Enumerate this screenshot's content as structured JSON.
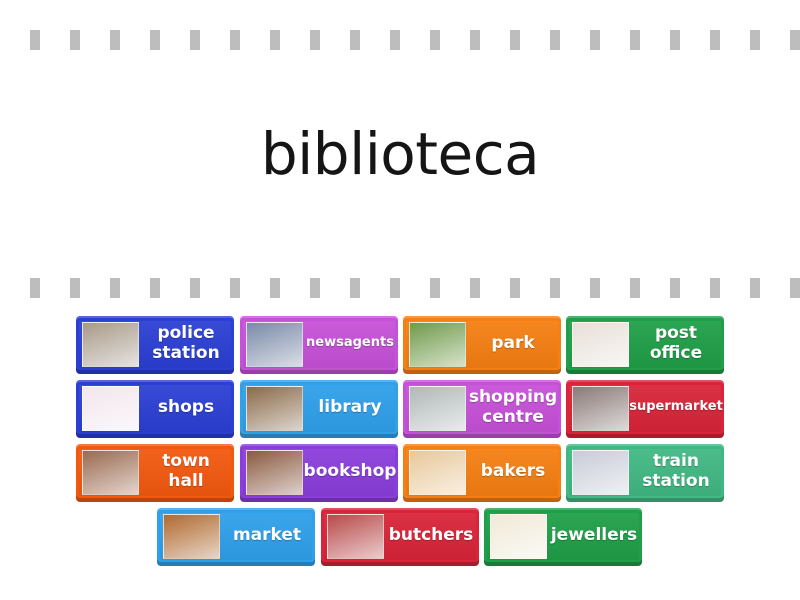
{
  "question": "biblioteca",
  "tiles": [
    {
      "label": "police station",
      "color": "#2b3fd4",
      "thumb": "#a89a8a",
      "image": "police-station"
    },
    {
      "label": "newsagents",
      "color": "#c651d9",
      "thumb": "#7a8aa8",
      "image": "newsagent-shopfront",
      "small": true
    },
    {
      "label": "park",
      "color": "#f57f12",
      "thumb": "#6f9a4a",
      "image": "park"
    },
    {
      "label": "post office",
      "color": "#1f9f48",
      "thumb": "#e8e0d8",
      "image": "post-office"
    },
    {
      "label": "shops",
      "color": "#2b3fd4",
      "thumb": "#f2e6ee",
      "image": "shopping-bags"
    },
    {
      "label": "library",
      "color": "#2fa0ea",
      "thumb": "#8a6a4a",
      "image": "library-shelves"
    },
    {
      "label": "shopping centre",
      "color": "#c651d9",
      "thumb": "#b0b8b8",
      "image": "shopping-centre"
    },
    {
      "label": "supermarket",
      "color": "#d92439",
      "thumb": "#8a7a78",
      "image": "supermarket",
      "small": true
    },
    {
      "label": "town hall",
      "color": "#f2590f",
      "thumb": "#9a6a50",
      "image": "town-hall"
    },
    {
      "label": "bookshop",
      "color": "#8a3ddb",
      "thumb": "#8a5a40",
      "image": "bookshop"
    },
    {
      "label": "bakers",
      "color": "#f57f12",
      "thumb": "#e8c89a",
      "image": "bread-loaf"
    },
    {
      "label": "train station",
      "color": "#40b883",
      "thumb": "#c8ccd8",
      "image": "train"
    },
    {
      "label": "market",
      "color": "#2fa0ea",
      "thumb": "#b06a30",
      "image": "market-stall"
    },
    {
      "label": "butchers",
      "color": "#d92439",
      "thumb": "#b84a4a",
      "image": "butchers-shop"
    },
    {
      "label": "jewellers",
      "color": "#1f9f48",
      "thumb": "#f0ead8",
      "image": "necklace"
    }
  ]
}
